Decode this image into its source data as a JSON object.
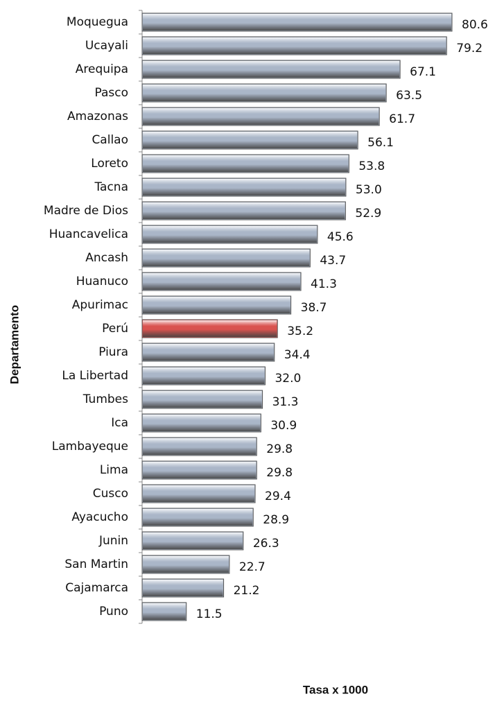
{
  "chart_data": {
    "type": "barh",
    "y_label": "Departamento",
    "x_label": "Tasa x 1000",
    "categories": [
      "Moquegua",
      "Ucayali",
      "Arequipa",
      "Pasco",
      "Amazonas",
      "Callao",
      "Loreto",
      "Tacna",
      "Madre de Dios",
      "Huancavelica",
      "Ancash",
      "Huanuco",
      "Apurimac",
      "Perú",
      "Piura",
      "La Libertad",
      "Tumbes",
      "Ica",
      "Lambayeque",
      "Lima",
      "Cusco",
      "Ayacucho",
      "Junin",
      "San Martin",
      "Cajamarca",
      "Puno"
    ],
    "values": [
      80.6,
      79.2,
      67.1,
      63.5,
      61.7,
      56.1,
      53.8,
      53.0,
      52.9,
      45.6,
      43.7,
      41.3,
      38.7,
      35.2,
      34.4,
      32.0,
      31.3,
      30.9,
      29.8,
      29.8,
      29.4,
      28.9,
      26.3,
      22.7,
      21.2,
      11.5
    ],
    "value_labels": [
      "80.6",
      "79.2",
      "67.1",
      "63.5",
      "61.7",
      "56.1",
      "53.8",
      "53.0",
      "52.9",
      "45.6",
      "43.7",
      "41.3",
      "38.7",
      "35.2",
      "34.4",
      "32.0",
      "31.3",
      "30.9",
      "29.8",
      "29.8",
      "29.4",
      "28.9",
      "26.3",
      "22.7",
      "21.2",
      "11.5"
    ],
    "colors": [
      "#aab6c8",
      "#aab6c8",
      "#aab6c8",
      "#aab6c8",
      "#aab6c8",
      "#aab6c8",
      "#aab6c8",
      "#aab6c8",
      "#aab6c8",
      "#aab6c8",
      "#aab6c8",
      "#aab6c8",
      "#aab6c8",
      "#d9534f",
      "#aab6c8",
      "#aab6c8",
      "#aab6c8",
      "#aab6c8",
      "#aab6c8",
      "#aab6c8",
      "#aab6c8",
      "#aab6c8",
      "#aab6c8",
      "#aab6c8",
      "#aab6c8",
      "#aab6c8"
    ]
  }
}
